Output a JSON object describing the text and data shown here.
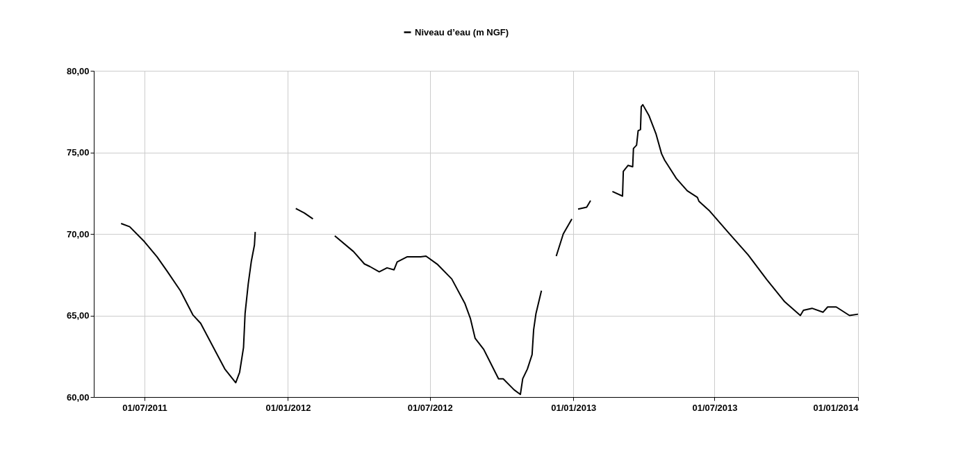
{
  "chart_data": {
    "type": "line",
    "legend": "top",
    "grid": true,
    "line_style": "solid",
    "xlim": [
      "2011-04-27",
      "2014-01-01"
    ],
    "xticks": [
      {
        "value": "2011-07-01",
        "label": "01/07/2011"
      },
      {
        "value": "2012-01-01",
        "label": "01/01/2012"
      },
      {
        "value": "2012-07-01",
        "label": "01/07/2012"
      },
      {
        "value": "2013-01-01",
        "label": "01/01/2013"
      },
      {
        "value": "2013-07-01",
        "label": "01/07/2013"
      },
      {
        "value": "2014-01-01",
        "label": "01/01/2014"
      }
    ],
    "ylim": [
      60,
      80
    ],
    "yticks": [
      {
        "value": 60,
        "label": "60,00"
      },
      {
        "value": 65,
        "label": "65,00"
      },
      {
        "value": 70,
        "label": "70,00"
      },
      {
        "value": 75,
        "label": "75,00"
      },
      {
        "value": 80,
        "label": "80,00"
      }
    ],
    "x": [
      "2011-06-01",
      "2011-06-12",
      "2011-07-01",
      "2011-07-17",
      "2011-07-30",
      "2011-08-16",
      "2011-09-01",
      "2011-09-11",
      "2011-10-12",
      "2011-10-26",
      "2011-10-31",
      "2011-11-05",
      "2011-11-07",
      "2011-11-11",
      "2011-11-15",
      "2011-11-19",
      "2011-11-20",
      "2011-12-20",
      "2012-01-11",
      "2012-01-22",
      "2012-02-02",
      "2012-02-15",
      "2012-03-01",
      "2012-03-25",
      "2012-04-08",
      "2012-04-15",
      "2012-04-27",
      "2012-05-07",
      "2012-05-16",
      "2012-05-20",
      "2012-06-02",
      "2012-06-19",
      "2012-06-26",
      "2012-07-11",
      "2012-07-29",
      "2012-08-15",
      "2012-08-22",
      "2012-08-28",
      "2012-09-08",
      "2012-09-27",
      "2012-10-03",
      "2012-10-17",
      "2012-10-25",
      "2012-10-28",
      "2012-11-03",
      "2012-11-09",
      "2012-11-11",
      "2012-11-14",
      "2012-11-21",
      "2012-12-01",
      "2012-12-10",
      "2012-12-19",
      "2012-12-30",
      "2013-01-03",
      "2013-01-07",
      "2013-01-18",
      "2013-01-23",
      "2013-02-05",
      "2013-02-20",
      "2013-03-05",
      "2013-03-06",
      "2013-03-12",
      "2013-03-18",
      "2013-03-19",
      "2013-03-23",
      "2013-03-25",
      "2013-03-28",
      "2013-03-29",
      "2013-03-31",
      "2013-04-08",
      "2013-04-17",
      "2013-04-24",
      "2013-04-28",
      "2013-05-13",
      "2013-05-27",
      "2013-06-09",
      "2013-06-11",
      "2013-06-24",
      "2013-07-18",
      "2013-08-13",
      "2013-09-06",
      "2013-09-29",
      "2013-10-19",
      "2013-10-23",
      "2013-11-03",
      "2013-11-17",
      "2013-11-23",
      "2013-12-04",
      "2013-12-21",
      "2014-01-01"
    ],
    "series": [
      {
        "name": "Niveau d’eau (m NGF)",
        "color": "#000000",
        "values": [
          70.64,
          70.44,
          69.52,
          68.6,
          67.72,
          66.52,
          65.04,
          64.52,
          61.72,
          60.88,
          61.52,
          63.04,
          65.12,
          66.92,
          68.32,
          69.32,
          70.12,
          null,
          71.56,
          71.28,
          70.92,
          null,
          69.88,
          68.92,
          68.16,
          68.0,
          67.68,
          67.92,
          67.8,
          68.28,
          68.6,
          68.6,
          68.64,
          68.12,
          67.24,
          65.72,
          64.8,
          63.6,
          62.92,
          61.12,
          61.12,
          60.44,
          60.16,
          61.12,
          61.72,
          62.6,
          64.12,
          65.12,
          66.52,
          null,
          68.64,
          70.0,
          70.92,
          null,
          71.52,
          71.64,
          72.04,
          null,
          72.6,
          72.32,
          73.84,
          74.2,
          74.12,
          75.24,
          75.44,
          76.32,
          76.4,
          77.8,
          77.92,
          77.24,
          76.12,
          74.92,
          74.52,
          73.4,
          72.64,
          72.24,
          72.0,
          71.44,
          70.12,
          68.72,
          67.2,
          65.84,
          65.0,
          65.32,
          65.44,
          65.2,
          65.52,
          65.52,
          65.0,
          65.08
        ]
      }
    ]
  }
}
